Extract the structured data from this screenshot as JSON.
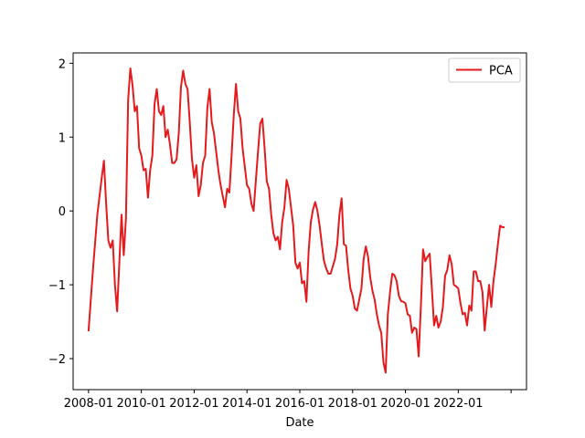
{
  "chart_data": {
    "type": "line",
    "title": "",
    "xlabel": "Date",
    "ylabel": "",
    "x_ticks": [
      "2008-01",
      "2010-01",
      "2012-01",
      "2014-01",
      "2016-01",
      "2018-01",
      "2020-01",
      "2022-01",
      ""
    ],
    "y_ticks": [
      -2,
      -1,
      0,
      1,
      2
    ],
    "y_tick_labels": [
      "−2",
      "−1",
      "0",
      "1",
      "2"
    ],
    "xlim": [
      "2007-06",
      "2024-08"
    ],
    "ylim": [
      -2.42,
      2.14
    ],
    "grid": false,
    "legend": {
      "position": "top-right",
      "entries": [
        "PCA"
      ]
    },
    "series": [
      {
        "name": "PCA",
        "color": "#e41a1c",
        "points": [
          [
            "2008-01",
            -1.63
          ],
          [
            "2008-03",
            -0.8
          ],
          [
            "2008-05",
            -0.05
          ],
          [
            "2008-07",
            0.45
          ],
          [
            "2008-08",
            0.68
          ],
          [
            "2008-09",
            0.1
          ],
          [
            "2008-10",
            -0.4
          ],
          [
            "2008-11",
            -0.5
          ],
          [
            "2008-12",
            -0.4
          ],
          [
            "2009-01",
            -1.0
          ],
          [
            "2009-02",
            -1.36
          ],
          [
            "2009-03",
            -0.7
          ],
          [
            "2009-04",
            -0.05
          ],
          [
            "2009-05",
            -0.6
          ],
          [
            "2009-06",
            -0.1
          ],
          [
            "2009-07",
            1.5
          ],
          [
            "2009-08",
            1.93
          ],
          [
            "2009-09",
            1.7
          ],
          [
            "2009-10",
            1.35
          ],
          [
            "2009-11",
            1.42
          ],
          [
            "2009-12",
            0.85
          ],
          [
            "2010-01",
            0.75
          ],
          [
            "2010-02",
            0.55
          ],
          [
            "2010-03",
            0.57
          ],
          [
            "2010-04",
            0.18
          ],
          [
            "2010-05",
            0.55
          ],
          [
            "2010-06",
            0.75
          ],
          [
            "2010-07",
            1.45
          ],
          [
            "2010-08",
            1.65
          ],
          [
            "2010-09",
            1.35
          ],
          [
            "2010-10",
            1.3
          ],
          [
            "2010-11",
            1.42
          ],
          [
            "2010-12",
            1.0
          ],
          [
            "2011-01",
            1.1
          ],
          [
            "2011-02",
            0.9
          ],
          [
            "2011-03",
            0.65
          ],
          [
            "2011-04",
            0.65
          ],
          [
            "2011-05",
            0.7
          ],
          [
            "2011-06",
            1.05
          ],
          [
            "2011-07",
            1.68
          ],
          [
            "2011-08",
            1.9
          ],
          [
            "2011-09",
            1.72
          ],
          [
            "2011-10",
            1.65
          ],
          [
            "2011-11",
            1.2
          ],
          [
            "2011-12",
            0.7
          ],
          [
            "2012-01",
            0.45
          ],
          [
            "2012-02",
            0.62
          ],
          [
            "2012-03",
            0.2
          ],
          [
            "2012-04",
            0.35
          ],
          [
            "2012-05",
            0.65
          ],
          [
            "2012-06",
            0.75
          ],
          [
            "2012-07",
            1.4
          ],
          [
            "2012-08",
            1.65
          ],
          [
            "2012-09",
            1.2
          ],
          [
            "2012-10",
            1.05
          ],
          [
            "2012-11",
            0.8
          ],
          [
            "2012-12",
            0.55
          ],
          [
            "2013-01",
            0.35
          ],
          [
            "2013-02",
            0.2
          ],
          [
            "2013-03",
            0.05
          ],
          [
            "2013-04",
            0.3
          ],
          [
            "2013-05",
            0.25
          ],
          [
            "2013-06",
            0.75
          ],
          [
            "2013-07",
            1.3
          ],
          [
            "2013-08",
            1.72
          ],
          [
            "2013-09",
            1.35
          ],
          [
            "2013-10",
            1.25
          ],
          [
            "2013-11",
            0.85
          ],
          [
            "2013-12",
            0.6
          ],
          [
            "2014-01",
            0.35
          ],
          [
            "2014-02",
            0.3
          ],
          [
            "2014-03",
            0.1
          ],
          [
            "2014-04",
            0.0
          ],
          [
            "2014-05",
            0.4
          ],
          [
            "2014-06",
            0.8
          ],
          [
            "2014-07",
            1.18
          ],
          [
            "2014-08",
            1.25
          ],
          [
            "2014-09",
            0.85
          ],
          [
            "2014-10",
            0.4
          ],
          [
            "2014-11",
            0.3
          ],
          [
            "2014-12",
            -0.05
          ],
          [
            "2015-01",
            -0.3
          ],
          [
            "2015-02",
            -0.4
          ],
          [
            "2015-03",
            -0.35
          ],
          [
            "2015-04",
            -0.52
          ],
          [
            "2015-05",
            -0.15
          ],
          [
            "2015-06",
            0.05
          ],
          [
            "2015-07",
            0.42
          ],
          [
            "2015-08",
            0.3
          ],
          [
            "2015-09",
            0.05
          ],
          [
            "2015-10",
            -0.2
          ],
          [
            "2015-11",
            -0.7
          ],
          [
            "2015-12",
            -0.78
          ],
          [
            "2016-01",
            -0.7
          ],
          [
            "2016-02",
            -0.98
          ],
          [
            "2016-03",
            -0.95
          ],
          [
            "2016-04",
            -1.23
          ],
          [
            "2016-05",
            -0.55
          ],
          [
            "2016-06",
            -0.15
          ],
          [
            "2016-07",
            0.02
          ],
          [
            "2016-08",
            0.12
          ],
          [
            "2016-09",
            0.0
          ],
          [
            "2016-10",
            -0.2
          ],
          [
            "2016-11",
            -0.45
          ],
          [
            "2016-12",
            -0.68
          ],
          [
            "2017-01",
            -0.78
          ],
          [
            "2017-02",
            -0.85
          ],
          [
            "2017-03",
            -0.85
          ],
          [
            "2017-04",
            -0.75
          ],
          [
            "2017-05",
            -0.65
          ],
          [
            "2017-06",
            -0.45
          ],
          [
            "2017-07",
            -0.05
          ],
          [
            "2017-08",
            0.17
          ],
          [
            "2017-09",
            -0.45
          ],
          [
            "2017-10",
            -0.47
          ],
          [
            "2017-11",
            -0.8
          ],
          [
            "2017-12",
            -1.05
          ],
          [
            "2018-01",
            -1.15
          ],
          [
            "2018-02",
            -1.32
          ],
          [
            "2018-03",
            -1.35
          ],
          [
            "2018-04",
            -1.2
          ],
          [
            "2018-05",
            -1.05
          ],
          [
            "2018-06",
            -0.65
          ],
          [
            "2018-07",
            -0.48
          ],
          [
            "2018-08",
            -0.62
          ],
          [
            "2018-09",
            -0.9
          ],
          [
            "2018-10",
            -1.08
          ],
          [
            "2018-11",
            -1.2
          ],
          [
            "2018-12",
            -1.4
          ],
          [
            "2019-01",
            -1.55
          ],
          [
            "2019-02",
            -1.65
          ],
          [
            "2019-03",
            -2.05
          ],
          [
            "2019-04",
            -2.19
          ],
          [
            "2019-05",
            -1.4
          ],
          [
            "2019-06",
            -1.1
          ],
          [
            "2019-07",
            -0.85
          ],
          [
            "2019-08",
            -0.87
          ],
          [
            "2019-09",
            -0.95
          ],
          [
            "2019-10",
            -1.15
          ],
          [
            "2019-11",
            -1.22
          ],
          [
            "2019-12",
            -1.23
          ],
          [
            "2020-01",
            -1.25
          ],
          [
            "2020-02",
            -1.4
          ],
          [
            "2020-03",
            -1.42
          ],
          [
            "2020-04",
            -1.65
          ],
          [
            "2020-05",
            -1.58
          ],
          [
            "2020-06",
            -1.6
          ],
          [
            "2020-07",
            -1.97
          ],
          [
            "2020-08",
            -1.3
          ],
          [
            "2020-09",
            -0.52
          ],
          [
            "2020-10",
            -0.68
          ],
          [
            "2020-11",
            -0.62
          ],
          [
            "2020-12",
            -0.58
          ],
          [
            "2021-01",
            -1.05
          ],
          [
            "2021-02",
            -1.55
          ],
          [
            "2021-03",
            -1.42
          ],
          [
            "2021-04",
            -1.58
          ],
          [
            "2021-05",
            -1.5
          ],
          [
            "2021-06",
            -1.3
          ],
          [
            "2021-07",
            -0.88
          ],
          [
            "2021-08",
            -0.8
          ],
          [
            "2021-09",
            -0.6
          ],
          [
            "2021-10",
            -0.72
          ],
          [
            "2021-11",
            -1.0
          ],
          [
            "2021-12",
            -1.02
          ],
          [
            "2022-01",
            -1.05
          ],
          [
            "2022-02",
            -1.25
          ],
          [
            "2022-03",
            -1.4
          ],
          [
            "2022-04",
            -1.38
          ],
          [
            "2022-05",
            -1.55
          ],
          [
            "2022-06",
            -1.28
          ],
          [
            "2022-07",
            -1.35
          ],
          [
            "2022-08",
            -0.82
          ],
          [
            "2022-09",
            -0.82
          ],
          [
            "2022-10",
            -0.95
          ],
          [
            "2022-11",
            -0.95
          ],
          [
            "2022-12",
            -1.1
          ],
          [
            "2023-01",
            -1.62
          ],
          [
            "2023-02",
            -1.3
          ],
          [
            "2023-03",
            -1.0
          ],
          [
            "2023-04",
            -1.3
          ],
          [
            "2023-05",
            -0.95
          ],
          [
            "2023-06",
            -0.72
          ],
          [
            "2023-07",
            -0.45
          ],
          [
            "2023-08",
            -0.2
          ],
          [
            "2023-09",
            -0.22
          ],
          [
            "2023-10",
            -0.22
          ]
        ]
      }
    ]
  }
}
